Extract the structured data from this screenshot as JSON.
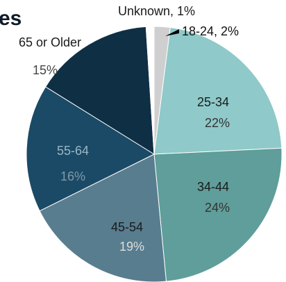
{
  "chart_data": {
    "type": "pie",
    "title": "es",
    "categories": [
      "18-24",
      "25-34",
      "34-44",
      "45-54",
      "55-64",
      "65 or Older",
      "Unknown"
    ],
    "values": [
      2,
      22,
      24,
      19,
      16,
      15,
      1
    ],
    "value_labels": [
      ", 2%",
      "22%",
      "24%",
      "19%",
      "16%",
      "15%",
      ", 1%"
    ],
    "colors": [
      "#cfcfcf",
      "#8fc9c9",
      "#5f9e9a",
      "#587d8f",
      "#1b4a66",
      "#0f2f45",
      "#ffffff"
    ]
  }
}
